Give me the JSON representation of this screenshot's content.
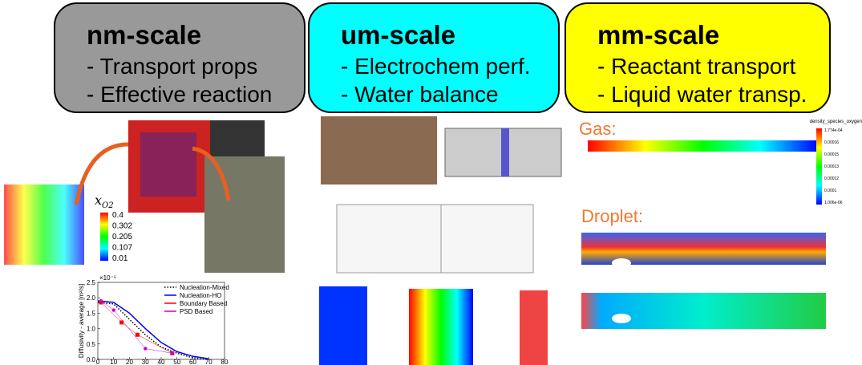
{
  "panels": [
    {
      "title": "nm-scale",
      "items": [
        "- Transport props",
        "- Effective reaction"
      ]
    },
    {
      "title": "um-scale",
      "items": [
        "- Electrochem perf.",
        "- Water balance"
      ]
    },
    {
      "title": "mm-scale",
      "items": [
        "- Reactant transport",
        "- Liquid water transp."
      ]
    }
  ],
  "microstructure": {
    "colorbar_symbol": "x",
    "colorbar_subscript": "O2",
    "colorbar_ticks": [
      0.4,
      0.302,
      0.205,
      0.107,
      0.01
    ]
  },
  "chart_data": {
    "type": "line",
    "y_label": "Diffusivity - average [m²/s]",
    "y_multiplier": "×10⁻⁵",
    "xlim": [
      0,
      80
    ],
    "ylim": [
      0,
      2.5
    ],
    "xticks": [
      0,
      10,
      20,
      30,
      40,
      50,
      60,
      70,
      80
    ],
    "yticks": [
      {
        "value": 0,
        "label": "0.0"
      },
      0.5,
      {
        "value": 1,
        "label": "1.0"
      },
      1.5,
      {
        "value": 2,
        "label": "2.0"
      },
      2.5
    ],
    "series": [
      {
        "name": "Nucleation-Mixed",
        "color": "#000000",
        "style": "dotted",
        "x": [
          0,
          10,
          20,
          30,
          40,
          50,
          60,
          70
        ],
        "values": [
          1.85,
          1.8,
          1.3,
          0.8,
          0.4,
          0.2,
          0.05,
          0
        ]
      },
      {
        "name": "Nucleation-HO",
        "color": "#0000ff",
        "style": "solid",
        "x": [
          0,
          10,
          20,
          30,
          40,
          50,
          60,
          70
        ],
        "values": [
          1.9,
          1.85,
          1.5,
          1.0,
          0.55,
          0.25,
          0.1,
          0.02
        ]
      },
      {
        "name": "Boundary Based",
        "color": "#ff0000",
        "style": "square",
        "x": [
          2,
          15,
          25,
          47
        ],
        "values": [
          1.85,
          1.2,
          0.8,
          0.2
        ]
      },
      {
        "name": "PSD Based",
        "color": "#cc00cc",
        "style": "circle",
        "x": [
          2,
          10,
          30,
          47
        ],
        "values": [
          1.9,
          1.6,
          0.35,
          0.2
        ]
      }
    ]
  },
  "gas": {
    "label": "Gas:",
    "colorbar_title": "density_species_oxygen",
    "colorbar_ticks": [
      "1.774e-04",
      "0.00016",
      "0.00015",
      "0.00013",
      "0.00012",
      "0.0001",
      "1.006e-06"
    ]
  },
  "droplet": {
    "label": "Droplet:"
  }
}
